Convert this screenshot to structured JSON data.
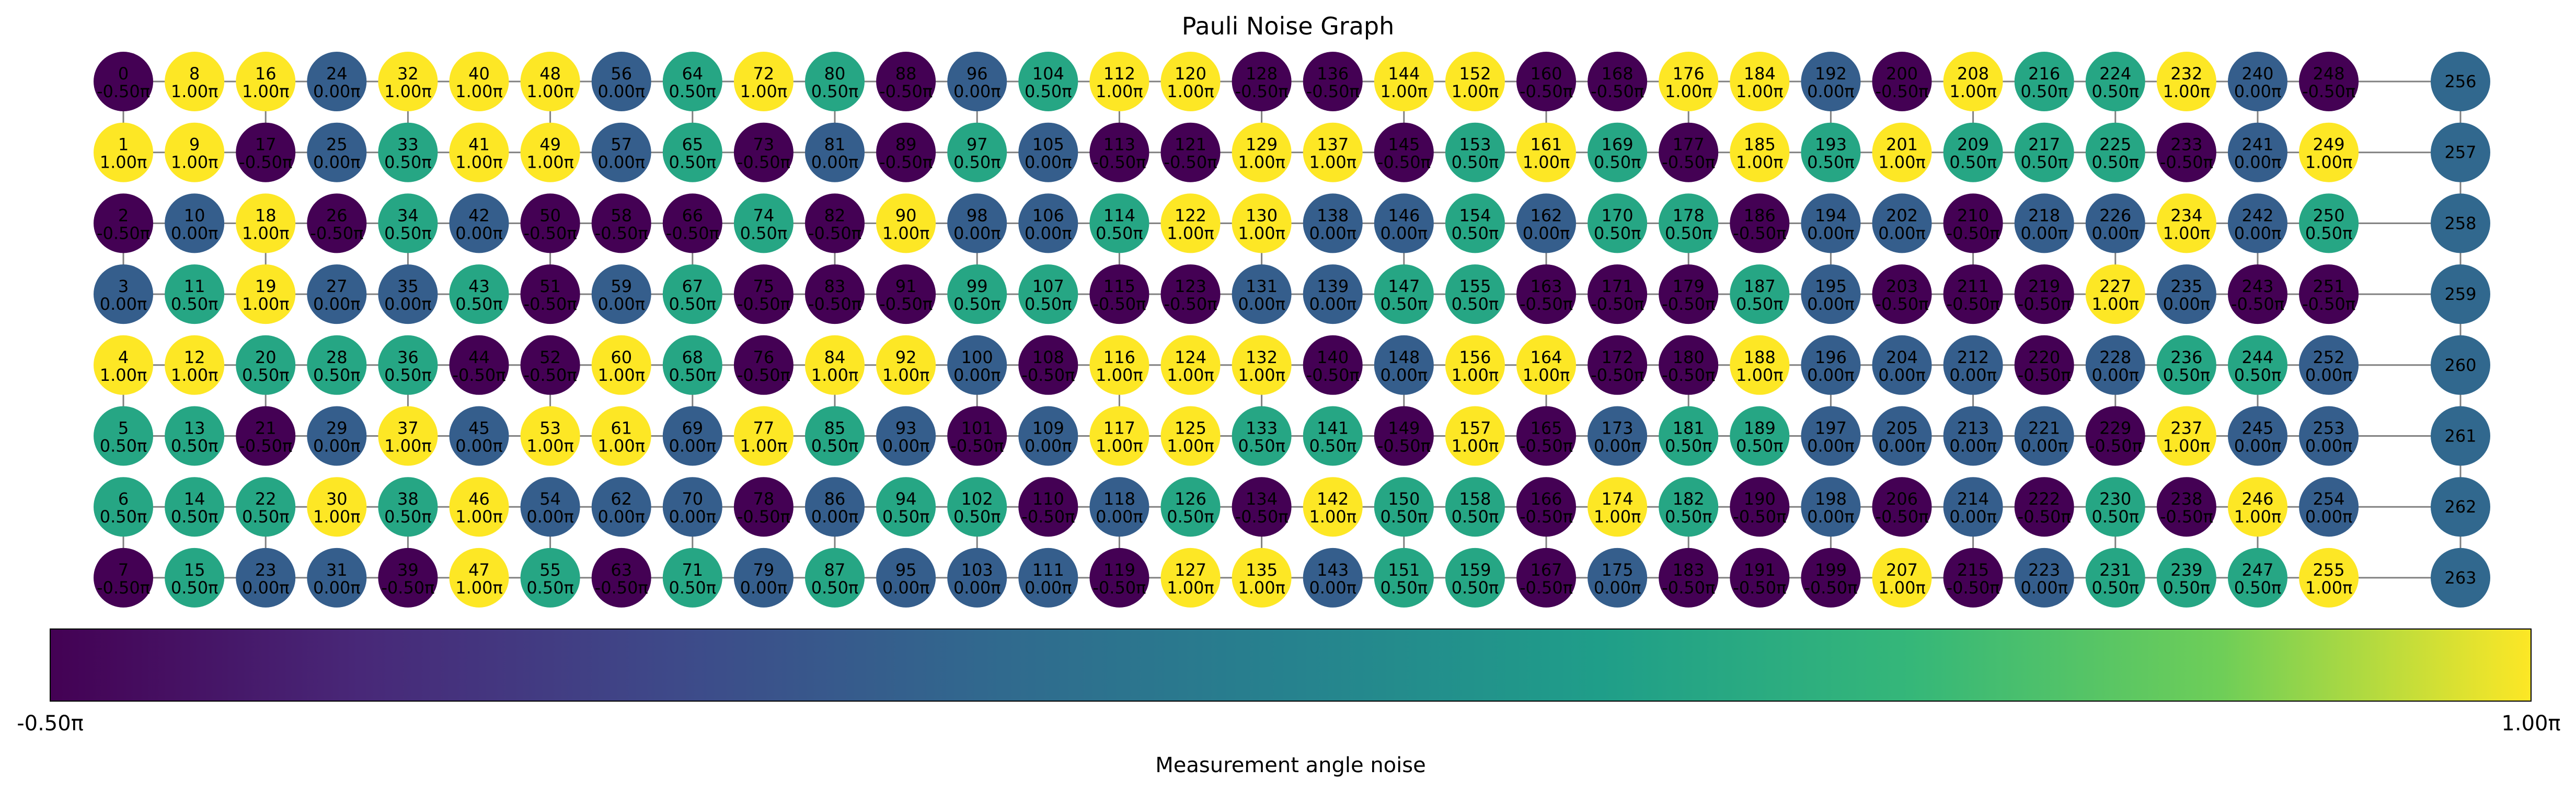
{
  "chart_data": {
    "type": "graph",
    "title": "Pauli Noise Graph",
    "colorbar": {
      "label": "Measurement angle noise",
      "min_label": "-0.50π",
      "max_label": "1.00π",
      "min": -0.5,
      "max": 1.0,
      "colormap": "viridis"
    },
    "grid": {
      "columns": 32,
      "rows": 8
    },
    "unlabeled_chain": {
      "start": 256,
      "end": 263
    },
    "values": [
      -0.5,
      1,
      -0.5,
      0,
      1,
      0.5,
      0.5,
      -0.5,
      1,
      1,
      0,
      0.5,
      1,
      0.5,
      0.5,
      0.5,
      1,
      -0.5,
      1,
      1,
      0.5,
      -0.5,
      0.5,
      0,
      0,
      0,
      -0.5,
      0,
      0.5,
      0,
      1,
      0,
      1,
      0.5,
      0.5,
      0,
      0.5,
      1,
      0.5,
      -0.5,
      1,
      1,
      0,
      0.5,
      -0.5,
      0,
      1,
      1,
      1,
      1,
      -0.5,
      -0.5,
      -0.5,
      1,
      0,
      0.5,
      0,
      0,
      -0.5,
      0,
      1,
      1,
      0,
      -0.5,
      0.5,
      0.5,
      -0.5,
      0.5,
      0.5,
      0,
      0,
      0.5,
      1,
      -0.5,
      0.5,
      -0.5,
      -0.5,
      1,
      -0.5,
      0,
      0.5,
      0,
      -0.5,
      -0.5,
      1,
      0.5,
      0,
      0.5,
      -0.5,
      -0.5,
      1,
      -0.5,
      1,
      0,
      0.5,
      0,
      0,
      0.5,
      0,
      0.5,
      0,
      -0.5,
      0.5,
      0,
      0.5,
      0,
      0,
      0.5,
      -0.5,
      0,
      -0.5,
      0,
      1,
      -0.5,
      0.5,
      -0.5,
      1,
      1,
      0,
      -0.5,
      1,
      -0.5,
      1,
      -0.5,
      1,
      1,
      0.5,
      1,
      -0.5,
      1,
      1,
      0,
      1,
      0.5,
      -0.5,
      1,
      -0.5,
      1,
      0,
      0,
      -0.5,
      0.5,
      1,
      0,
      1,
      -0.5,
      0,
      0.5,
      0,
      -0.5,
      0.5,
      0.5,
      1,
      0.5,
      0.5,
      0.5,
      1,
      1,
      0.5,
      0.5,
      -0.5,
      1,
      0,
      -0.5,
      1,
      -0.5,
      -0.5,
      -0.5,
      -0.5,
      0.5,
      0.5,
      -0.5,
      -0.5,
      0,
      1,
      0,
      1,
      -0.5,
      0.5,
      -0.5,
      -0.5,
      0.5,
      0.5,
      -0.5,
      1,
      1,
      -0.5,
      0.5,
      1,
      0.5,
      -0.5,
      -0.5,
      0,
      0.5,
      0,
      0,
      0,
      0,
      0,
      -0.5,
      -0.5,
      1,
      0,
      -0.5,
      0,
      0,
      -0.5,
      1,
      1,
      0.5,
      -0.5,
      -0.5,
      0,
      0,
      0,
      -0.5,
      0.5,
      0.5,
      0,
      -0.5,
      -0.5,
      0,
      -0.5,
      0,
      0.5,
      0.5,
      0,
      1,
      0,
      -0.5,
      0.5,
      0.5,
      1,
      -0.5,
      1,
      0,
      0.5,
      1,
      -0.5,
      0.5,
      0,
      0,
      0,
      -0.5,
      0.5,
      0,
      1,
      0.5,
      -0.5,
      1,
      0.5,
      -0.5,
      0,
      0,
      0,
      1
    ],
    "vertical_edges": [
      [
        0,
        1
      ],
      [
        2,
        3
      ],
      [
        4,
        5
      ],
      [
        6,
        7
      ],
      [
        16,
        17
      ],
      [
        18,
        19
      ],
      [
        20,
        21
      ],
      [
        22,
        23
      ],
      [
        32,
        33
      ],
      [
        34,
        35
      ],
      [
        36,
        37
      ],
      [
        38,
        39
      ],
      [
        48,
        49
      ],
      [
        50,
        51
      ],
      [
        52,
        53
      ],
      [
        54,
        55
      ],
      [
        64,
        65
      ],
      [
        66,
        67
      ],
      [
        68,
        69
      ],
      [
        70,
        71
      ],
      [
        80,
        81
      ],
      [
        82,
        83
      ],
      [
        84,
        85
      ],
      [
        86,
        87
      ],
      [
        96,
        97
      ],
      [
        98,
        99
      ],
      [
        100,
        101
      ],
      [
        102,
        103
      ],
      [
        112,
        113
      ],
      [
        114,
        115
      ],
      [
        116,
        117
      ],
      [
        118,
        119
      ],
      [
        128,
        129
      ],
      [
        130,
        131
      ],
      [
        132,
        133
      ],
      [
        134,
        135
      ],
      [
        144,
        145
      ],
      [
        146,
        147
      ],
      [
        148,
        149
      ],
      [
        150,
        151
      ],
      [
        160,
        161
      ],
      [
        162,
        163
      ],
      [
        164,
        165
      ],
      [
        166,
        167
      ],
      [
        176,
        177
      ],
      [
        178,
        179
      ],
      [
        180,
        181
      ],
      [
        182,
        183
      ],
      [
        192,
        193
      ],
      [
        194,
        195
      ],
      [
        196,
        197
      ],
      [
        198,
        199
      ],
      [
        208,
        209
      ],
      [
        210,
        211
      ],
      [
        212,
        213
      ],
      [
        214,
        215
      ],
      [
        224,
        225
      ],
      [
        226,
        227
      ],
      [
        228,
        229
      ],
      [
        230,
        231
      ],
      [
        240,
        241
      ],
      [
        242,
        243
      ],
      [
        244,
        245
      ],
      [
        246,
        247
      ],
      [
        256,
        257
      ],
      [
        257,
        258
      ],
      [
        258,
        259
      ],
      [
        259,
        260
      ],
      [
        260,
        261
      ],
      [
        261,
        262
      ],
      [
        262,
        263
      ]
    ]
  }
}
